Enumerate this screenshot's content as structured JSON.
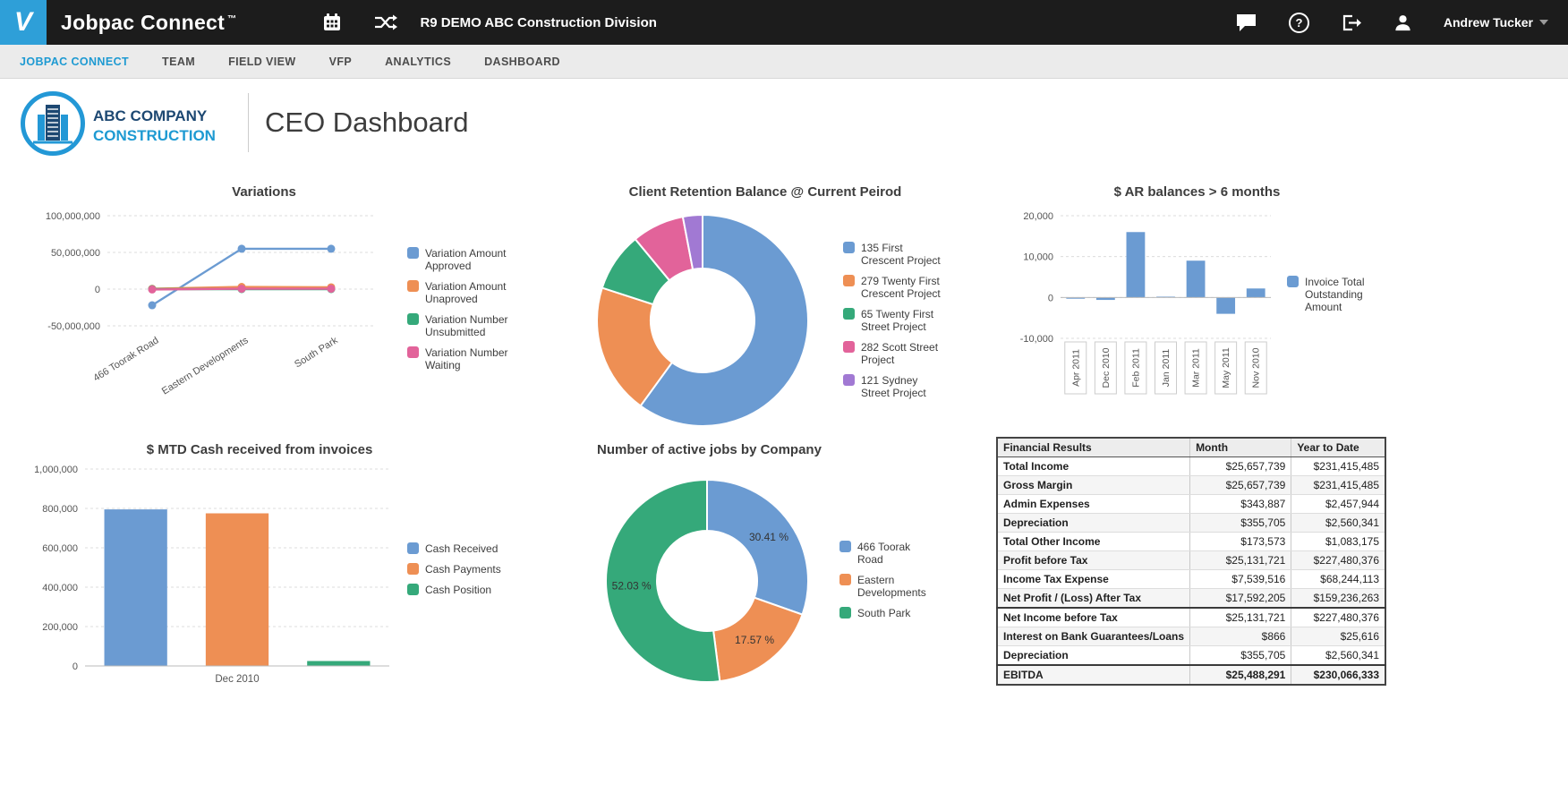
{
  "topbar": {
    "logo_letter": "V",
    "brand": "Jobpac Connect",
    "brand_tm": "™",
    "division": "R9 DEMO ABC Construction Division",
    "user": "Andrew Tucker"
  },
  "nav": {
    "items": [
      {
        "label": "JOBPAC CONNECT",
        "active": true
      },
      {
        "label": "TEAM",
        "active": false
      },
      {
        "label": "FIELD VIEW",
        "active": false
      },
      {
        "label": "VFP",
        "active": false
      },
      {
        "label": "ANALYTICS",
        "active": false
      },
      {
        "label": "DASHBOARD",
        "active": false
      }
    ]
  },
  "header": {
    "company_line1": "ABC COMPANY",
    "company_line2": "CONSTRUCTION",
    "title": "CEO Dashboard"
  },
  "colors": {
    "accent_blue": "#1e9ad2",
    "series_blue": "#6b9bd2",
    "series_orange": "#ee8f54",
    "series_green": "#35a97a",
    "series_pink": "#e2639a",
    "series_purple": "#a179d3",
    "topbar_bg": "#1c1c1c",
    "logo_bg": "#2e9fd8"
  },
  "chart_data": [
    {
      "id": "variations",
      "type": "line",
      "title": "Variations",
      "categories": [
        "466 Toorak Road",
        "Eastern Developments",
        "South Park"
      ],
      "series": [
        {
          "name": "Variation Amount Approved",
          "legend": "Variation Amount\nApproved",
          "color": "#6b9bd2",
          "values": [
            -22000000,
            55000000,
            55000000
          ]
        },
        {
          "name": "Variation Amount Unaproved",
          "legend": "Variation Amount\nUnaproved",
          "color": "#ee8f54",
          "values": [
            500000,
            3000000,
            2500000
          ]
        },
        {
          "name": "Variation Number Unsubmitted",
          "legend": "Variation Number\nUnsubmitted",
          "color": "#35a97a",
          "values": [
            0,
            0,
            0
          ]
        },
        {
          "name": "Variation Number Waiting",
          "legend": "Variation Number\nWaiting",
          "color": "#e2639a",
          "values": [
            -500000,
            500000,
            500000
          ]
        }
      ],
      "ylim": [
        -50000000,
        100000000
      ],
      "yticks": [
        100000000,
        50000000,
        0,
        -50000000
      ],
      "grid": true,
      "legend_position": "right"
    },
    {
      "id": "retention",
      "type": "pie",
      "title": "Client Retention Balance @ Current Peirod",
      "slices": [
        {
          "label": "135 First Crescent Project",
          "legend": "135 First\nCrescent Project",
          "color": "#6b9bd2",
          "value": 60
        },
        {
          "label": "279 Twenty First Crescent Project",
          "legend": "279 Twenty First\nCrescent Project",
          "color": "#ee8f54",
          "value": 20
        },
        {
          "label": "65 Twenty First Street Project",
          "legend": "65 Twenty First\nStreet Project",
          "color": "#35a97a",
          "value": 9
        },
        {
          "label": "282 Scott Street Project",
          "legend": "282 Scott Street\nProject",
          "color": "#e2639a",
          "value": 8
        },
        {
          "label": "121 Sydney Street Project",
          "legend": "121 Sydney\nStreet Project",
          "color": "#a179d3",
          "value": 3
        }
      ],
      "donut": true,
      "legend_position": "right"
    },
    {
      "id": "ar",
      "type": "bar",
      "title": "$ AR balances > 6 months",
      "categories": [
        "Apr 2011",
        "Dec 2010",
        "Feb 2011",
        "Jan 2011",
        "Mar 2011",
        "May 2011",
        "Nov 2010"
      ],
      "series": [
        {
          "name": "Invoice Total Outstanding Amount",
          "legend": "Invoice Total\nOutstanding\nAmount",
          "color": "#6b9bd2",
          "values": [
            -300,
            -600,
            16000,
            200,
            9000,
            -4000,
            2200
          ]
        }
      ],
      "ylim": [
        -10000,
        20000
      ],
      "yticks": [
        20000,
        10000,
        0,
        -10000
      ],
      "xlabel_style": "boxed",
      "grid": true,
      "legend_position": "right"
    },
    {
      "id": "mtd",
      "type": "bar",
      "title": "$ MTD Cash received from invoices",
      "categories": [
        "Dec 2010"
      ],
      "series": [
        {
          "name": "Cash Received",
          "legend": "Cash Received",
          "color": "#6b9bd2",
          "values": [
            795000
          ]
        },
        {
          "name": "Cash Payments",
          "legend": "Cash Payments",
          "color": "#ee8f54",
          "values": [
            775000
          ]
        },
        {
          "name": "Cash Position",
          "legend": "Cash Position",
          "color": "#35a97a",
          "values": [
            25000
          ]
        }
      ],
      "ylim": [
        0,
        1000000
      ],
      "yticks": [
        1000000,
        800000,
        600000,
        400000,
        200000,
        0
      ],
      "xlabel_style": "centered",
      "grid": true,
      "legend_position": "right"
    },
    {
      "id": "jobs",
      "type": "pie",
      "title": "Number of active jobs by Company",
      "slices": [
        {
          "label": "466 Toorak Road",
          "legend": "466 Toorak\nRoad",
          "color": "#6b9bd2",
          "value": 30.41,
          "pct_label": "30.41 %"
        },
        {
          "label": "Eastern Developments",
          "legend": "Eastern\nDevelopments",
          "color": "#ee8f54",
          "value": 17.57,
          "pct_label": "17.57 %"
        },
        {
          "label": "South Park",
          "legend": "South Park",
          "color": "#35a97a",
          "value": 52.03,
          "pct_label": "52.03 %"
        }
      ],
      "donut": true,
      "legend_position": "right"
    },
    {
      "id": "financial",
      "type": "table",
      "headers": [
        "Financial Results",
        "Month",
        "Year to Date"
      ],
      "rows": [
        {
          "label": "Total Income",
          "month": "$25,657,739",
          "ytd": "$231,415,485",
          "group": 1
        },
        {
          "label": "Gross Margin",
          "month": "$25,657,739",
          "ytd": "$231,415,485",
          "group": 1
        },
        {
          "label": "Admin Expenses",
          "month": "$343,887",
          "ytd": "$2,457,944",
          "group": 2
        },
        {
          "label": "Depreciation",
          "month": "$355,705",
          "ytd": "$2,560,341",
          "group": 2
        },
        {
          "label": "Total Other Income",
          "month": "$173,573",
          "ytd": "$1,083,175",
          "group": 2
        },
        {
          "label": "Profit before Tax",
          "month": "$25,131,721",
          "ytd": "$227,480,376",
          "group": 3
        },
        {
          "label": "Income Tax Expense",
          "month": "$7,539,516",
          "ytd": "$68,244,113",
          "group": 3
        },
        {
          "label": "Net Profit / (Loss) After Tax",
          "month": "$17,592,205",
          "ytd": "$159,236,263",
          "group": 3
        },
        {
          "label": "Net Income before Tax",
          "month": "$25,131,721",
          "ytd": "$227,480,376",
          "group": 4
        },
        {
          "label": "Interest on Bank Guarantees/Loans",
          "month": "$866",
          "ytd": "$25,616",
          "group": 4
        },
        {
          "label": "Depreciation",
          "month": "$355,705",
          "ytd": "$2,560,341",
          "group": 4
        },
        {
          "label": "EBITDA",
          "month": "$25,488,291",
          "ytd": "$230,066,333",
          "group": 5
        }
      ]
    }
  ]
}
